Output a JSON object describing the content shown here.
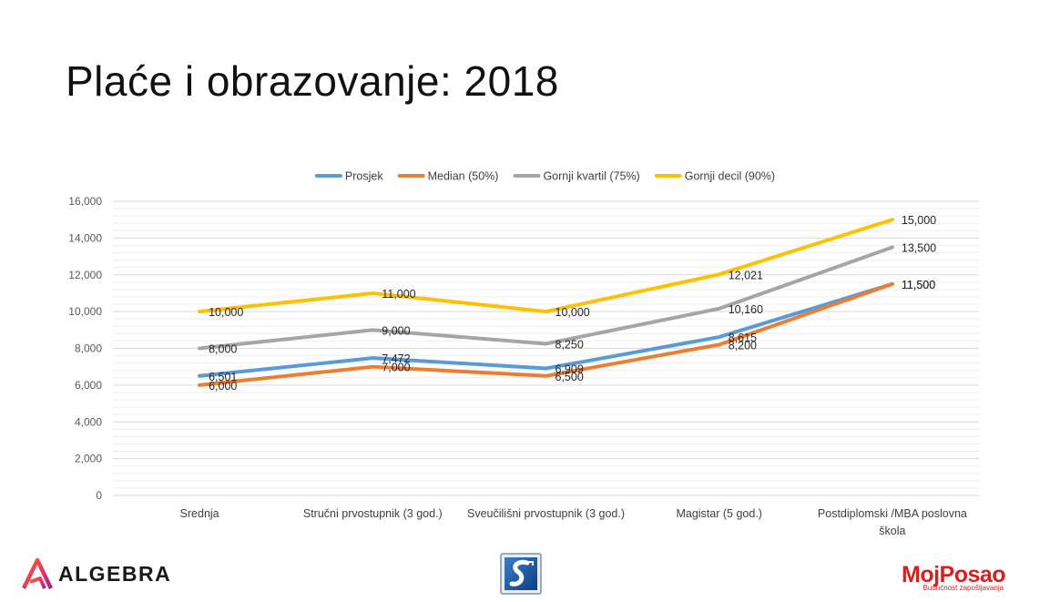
{
  "slide": {
    "title": "Plaće i obrazovanje: 2018"
  },
  "chart_data": {
    "type": "line",
    "title": "",
    "xlabel": "",
    "ylabel": "",
    "legend_position": "top",
    "grid": true,
    "ylim": [
      0,
      16000
    ],
    "y_ticks": [
      "0",
      "2,000",
      "4,000",
      "6,000",
      "8,000",
      "10,000",
      "12,000",
      "14,000",
      "16,000"
    ],
    "categories": [
      [
        "Srednja"
      ],
      [
        "Stručni prvostupnik (3 god.)"
      ],
      [
        "Sveučilišni prvostupnik (3 god.)"
      ],
      [
        "Magistar (5 god.)"
      ],
      [
        "Postdiplomski /MBA poslovna",
        "škola"
      ]
    ],
    "series": [
      {
        "name": "Prosjek",
        "color": "#5b9bd5",
        "values": [
          6501,
          7472,
          6909,
          8615,
          11500
        ],
        "labels": [
          "6,501",
          "7,472",
          "6,909",
          "8,615",
          "11,500"
        ]
      },
      {
        "name": "Median (50%)",
        "color": "#ed7d31",
        "values": [
          6000,
          7000,
          6500,
          8200,
          11500
        ],
        "labels": [
          "6,000",
          "7,000",
          "6,500",
          "8,200",
          "11,500"
        ]
      },
      {
        "name": "Gornji kvartil (75%)",
        "color": "#a5a5a5",
        "values": [
          8000,
          9000,
          8250,
          10160,
          13500
        ],
        "labels": [
          "8,000",
          "9,000",
          "8,250",
          "10,160",
          "13,500"
        ]
      },
      {
        "name": "Gornji decil (90%)",
        "color": "#ffc000",
        "values": [
          10000,
          11000,
          10000,
          12021,
          15000
        ],
        "labels": [
          "10,000",
          "11,000",
          "10,000",
          "12,021",
          "15,000"
        ]
      }
    ]
  },
  "logos": {
    "algebra": {
      "text": "ALGEBRA",
      "icon": "algebra-logo-icon"
    },
    "middle": {
      "icon": "institution-logo-icon"
    },
    "mojposao": {
      "text": "MojPosao",
      "tagline": "Budućnost zapošljavanja"
    }
  }
}
